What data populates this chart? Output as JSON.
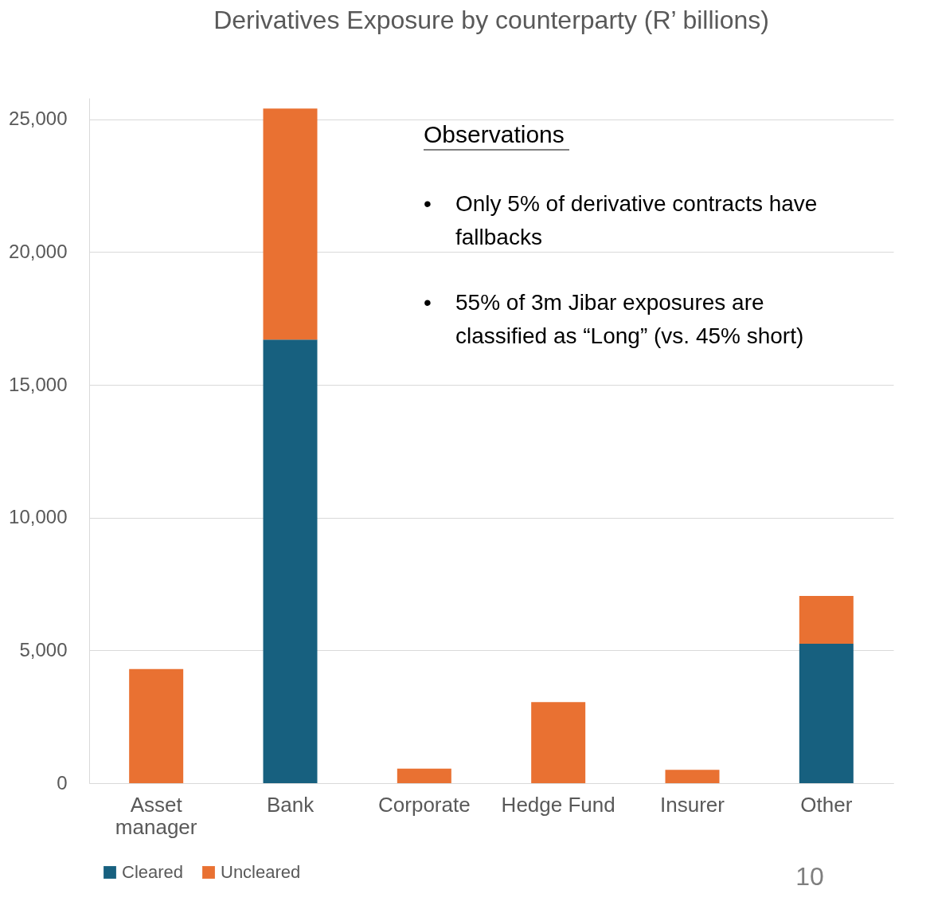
{
  "chart_data": {
    "type": "bar",
    "title": "Derivatives Exposure by counterparty (R’ billions)",
    "categories": [
      "Asset manager",
      "Bank",
      "Corporate",
      "Hedge Fund",
      "Insurer",
      "Other"
    ],
    "series": [
      {
        "name": "Cleared",
        "color": "#17607f",
        "values": [
          0,
          16700,
          0,
          0,
          0,
          5250
        ]
      },
      {
        "name": "Uncleared",
        "color": "#e97132",
        "values": [
          4300,
          8700,
          550,
          3050,
          500,
          1800
        ]
      }
    ],
    "stacked": true,
    "ylim": [
      0,
      25800
    ],
    "yticks": [
      0,
      {
        "value": 5000,
        "label": "5,000"
      },
      {
        "value": 10000,
        "label": "10,000"
      },
      {
        "value": 15000,
        "label": "15,000"
      },
      {
        "value": 20000,
        "label": "20,000"
      },
      {
        "value": 25000,
        "label": "25,000"
      }
    ],
    "grid": "y",
    "legend": "bottom",
    "annotations": [
      "Observations",
      "•",
      "Only 5% of derivative contracts have fallbacks",
      "•",
      "55% of 3m Jibar exposures are classified as “Long” (vs. 45% short)",
      "10"
    ]
  }
}
